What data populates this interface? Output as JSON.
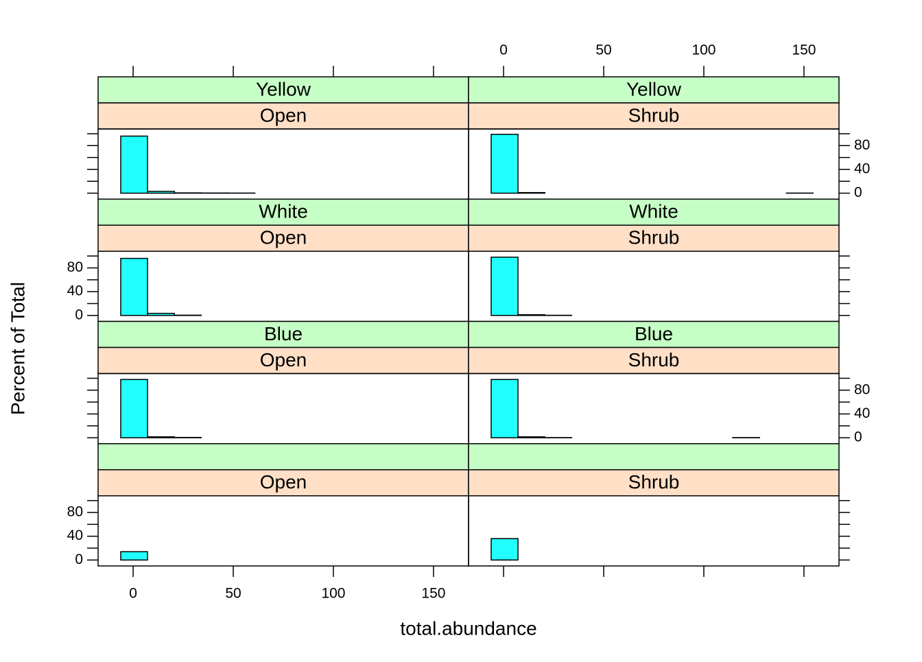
{
  "chart_data": {
    "type": "histogram",
    "xlabel": "total.abundance",
    "ylabel": "Percent of Total",
    "bar_color": "#22ffff",
    "strip_colors": [
      "#c6ffc6",
      "#ffdfc6"
    ],
    "xlim": [
      -17.5,
      167.5
    ],
    "xticks": [
      0,
      50,
      100,
      150
    ],
    "ylim": [
      -10,
      108
    ],
    "yticks": [
      0,
      40,
      80
    ],
    "yminor": [
      20,
      60,
      100
    ],
    "bins": [
      -6.2,
      7.2,
      20.6,
      34,
      47.4,
      60.8,
      74.2,
      87.6,
      101,
      114.4,
      127.8,
      141.2,
      154.6
    ],
    "panels": [
      {
        "group": "Yellow",
        "habitat": "Open",
        "counts": [
          96,
          3,
          0.5,
          0.3,
          0.2,
          0,
          0,
          0,
          0,
          0,
          0,
          0
        ]
      },
      {
        "group": "Yellow",
        "habitat": "Shrub",
        "counts": [
          99,
          1,
          0,
          0,
          0,
          0,
          0,
          0,
          0,
          0,
          0,
          0.2
        ]
      },
      {
        "group": "White",
        "habitat": "Open",
        "counts": [
          96,
          3.5,
          0.5,
          0,
          0,
          0,
          0,
          0,
          0,
          0,
          0,
          0
        ]
      },
      {
        "group": "White",
        "habitat": "Shrub",
        "counts": [
          98,
          1.2,
          0.3,
          0,
          0,
          0,
          0,
          0,
          0,
          0,
          0,
          0
        ]
      },
      {
        "group": "Blue",
        "habitat": "Open",
        "counts": [
          98,
          1.5,
          0.5,
          0,
          0,
          0,
          0,
          0,
          0,
          0,
          0,
          0
        ]
      },
      {
        "group": "Blue",
        "habitat": "Shrub",
        "counts": [
          98,
          1.5,
          0.3,
          0,
          0,
          0,
          0,
          0,
          0,
          0.3,
          0,
          0
        ]
      },
      {
        "habitat": "Open",
        "counts": [
          14,
          0,
          0,
          0,
          0,
          0,
          0,
          0,
          0,
          0,
          0,
          0
        ]
      },
      {
        "habitat": "Shrub",
        "counts": [
          36,
          0,
          0,
          0,
          0,
          0,
          0,
          0,
          0,
          0,
          0,
          0
        ]
      }
    ]
  }
}
